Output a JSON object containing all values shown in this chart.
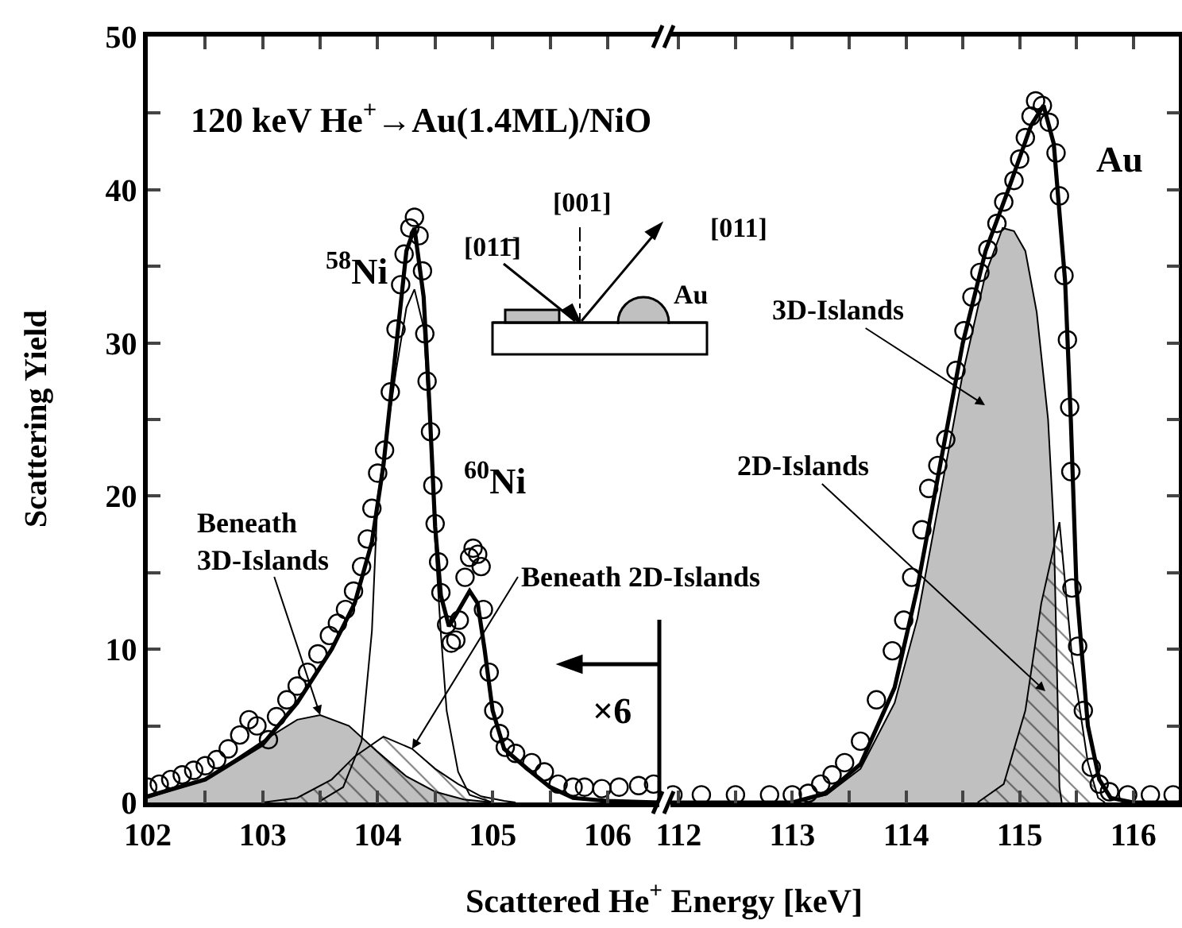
{
  "chart_data": [
    {
      "type": "line",
      "xlabel": "Scattered He$^{+}$ Energy [keV]",
      "ylabel": "Scattering Yield",
      "xlim": [
        102,
        106.45
      ],
      "ylim": [
        0,
        50
      ],
      "xticks": [
        102,
        {
          "value": 102.5,
          "label": null
        },
        103,
        {
          "value": 103.5,
          "label": null
        },
        104,
        {
          "value": 104.5,
          "label": null
        },
        105,
        {
          "value": 105.5,
          "label": null
        },
        106
      ],
      "yticks": [
        0,
        {
          "value": 5,
          "label": null
        },
        10,
        {
          "value": 15,
          "label": null
        },
        20,
        {
          "value": 25,
          "label": null
        },
        30,
        {
          "value": 35,
          "label": null
        },
        40,
        {
          "value": 45,
          "label": null
        },
        50
      ],
      "annotations": [
        "120 keV He$^{+}$→Au(1.4ML)/NiO",
        "$^{58}$Ni",
        "$^{60}$Ni",
        {
          "text": "Beneath\n3D-Islands",
          "x": 103.5,
          "y": 5.7
        },
        {
          "text": "Beneath 2D-Islands",
          "x": 104.3,
          "y": 3.5
        },
        "×6",
        "[001]",
        "[011̄]",
        "[011]",
        "Au"
      ],
      "series": [
        {
          "type": "area",
          "color": "#c0c0c0",
          "x": [
            102,
            102.5,
            103,
            103.3,
            103.5,
            103.75,
            104,
            104.25,
            104.5,
            104.75,
            105
          ],
          "values": [
            0.3,
            1.5,
            4.0,
            5.4,
            5.7,
            5.0,
            3.3,
            1.7,
            0.7,
            0.2,
            0
          ]
        },
        {
          "type": "area",
          "color": "#000000",
          "x": [
            103,
            103.3,
            103.6,
            103.8,
            104.05,
            104.3,
            104.5,
            104.7,
            104.9,
            105.1,
            105.2
          ],
          "values": [
            0,
            0.3,
            1.5,
            3.0,
            4.3,
            3.5,
            2.2,
            1.2,
            0.4,
            0.1,
            0
          ]
        },
        {
          "color": "#000000",
          "x": [
            103.5,
            103.7,
            103.86,
            103.95,
            104.0,
            104.16,
            104.25,
            104.32,
            104.4,
            104.45,
            104.5,
            104.55,
            104.6,
            104.7,
            104.8,
            105
          ],
          "values": [
            0.1,
            1.0,
            4.0,
            11.2,
            19.9,
            28.2,
            32.3,
            33.5,
            31,
            25,
            17,
            11,
            6,
            2,
            0.5,
            0
          ]
        },
        {
          "type": "scatter",
          "marker": "circle",
          "color": "#000000",
          "x": [
            102.0,
            102.1,
            102.2,
            102.3,
            102.4,
            102.5,
            102.6,
            102.7,
            102.8,
            102.88,
            102.95,
            103.05,
            103.12,
            103.21,
            103.3,
            103.39,
            103.48,
            103.58,
            103.65,
            103.72,
            103.79,
            103.86,
            103.91,
            103.95,
            104.0,
            104.06,
            104.11,
            104.16,
            104.2,
            104.23,
            104.28,
            104.32,
            104.36,
            104.39,
            104.41,
            104.43,
            104.46,
            104.48,
            104.5,
            104.53,
            104.55,
            104.6,
            104.64,
            104.68,
            104.71,
            104.76,
            104.8,
            104.83,
            104.87,
            104.9,
            104.92,
            104.97,
            105.01,
            105.06,
            105.11,
            105.2,
            105.34,
            105.45,
            105.57,
            105.7,
            105.8,
            105.95,
            106.1,
            106.27,
            106.4
          ],
          "values": [
            1.0,
            1.2,
            1.5,
            1.8,
            2.1,
            2.4,
            2.8,
            3.5,
            4.4,
            5.4,
            5.0,
            4.1,
            5.6,
            6.7,
            7.6,
            8.5,
            9.7,
            10.9,
            11.7,
            12.6,
            13.8,
            15.4,
            17.2,
            19.2,
            21.5,
            23.0,
            26.8,
            30.9,
            33.8,
            35.8,
            37.5,
            38.2,
            37.0,
            34.7,
            30.6,
            27.5,
            24.2,
            20.7,
            18.2,
            15.7,
            13.7,
            11.6,
            10.4,
            10.6,
            11.9,
            14.7,
            16.0,
            16.6,
            16.2,
            15.4,
            12.6,
            8.5,
            6.0,
            4.5,
            3.6,
            3.2,
            2.6,
            2.0,
            1.2,
            1.0,
            1.0,
            0.9,
            1.0,
            1.1,
            1.2
          ]
        },
        {
          "color": "#000000",
          "x": [
            102,
            102.5,
            103,
            103.3,
            103.6,
            103.8,
            103.95,
            104.05,
            104.15,
            104.25,
            104.32,
            104.4,
            104.45,
            104.5,
            104.55,
            104.62,
            104.7,
            104.8,
            104.87,
            104.93,
            105.0,
            105.1,
            105.3,
            105.5,
            105.7,
            106,
            106.45
          ],
          "values": [
            0.4,
            1.5,
            3.8,
            6.5,
            10,
            13,
            17,
            22,
            29,
            36,
            37.5,
            33,
            26,
            18,
            13.5,
            11.5,
            12.5,
            13.8,
            13,
            10,
            6,
            3.5,
            2.2,
            1.0,
            0.3,
            0.1,
            0
          ]
        }
      ]
    },
    {
      "type": "line",
      "tick_labels": "x",
      "xlim": [
        111.9,
        116.4
      ],
      "ylim": [
        0,
        50
      ],
      "xticks": [
        112,
        {
          "value": 112.5,
          "label": null
        },
        113,
        {
          "value": 113.5,
          "label": null
        },
        114,
        {
          "value": 114.5,
          "label": null
        },
        115,
        {
          "value": 115.5,
          "label": null
        },
        116
      ],
      "yticks": [
        0,
        {
          "value": 5,
          "label": null
        },
        10,
        {
          "value": 15,
          "label": null
        },
        20,
        {
          "value": 25,
          "label": null
        },
        30,
        {
          "value": 35,
          "label": null
        },
        40,
        {
          "value": 45,
          "label": null
        },
        50
      ],
      "annotations": [
        "Au",
        "3D-Islands",
        "2D-Islands"
      ],
      "series": [
        {
          "type": "area",
          "color": "#c0c0c0",
          "x": [
            113.0,
            113.3,
            113.6,
            113.9,
            114.1,
            114.3,
            114.5,
            114.7,
            114.85,
            114.95,
            115.05,
            115.15,
            115.25,
            115.3,
            115.33,
            115.35,
            115.37
          ],
          "values": [
            0,
            0.5,
            2.2,
            6.5,
            12,
            20,
            28,
            34.5,
            37.5,
            37.3,
            36,
            32,
            25,
            18,
            8,
            1,
            0
          ]
        },
        {
          "type": "area",
          "color": "#000000",
          "x": [
            114.63,
            114.86,
            115.05,
            115.19,
            115.35,
            115.46,
            115.6,
            115.69,
            115.75
          ],
          "values": [
            0,
            1.2,
            6.0,
            13,
            18.3,
            9.5,
            2.6,
            0.3,
            0
          ]
        },
        {
          "type": "scatter",
          "marker": "circle",
          "color": "#000000",
          "x": [
            111.95,
            112.2,
            112.5,
            112.8,
            113.0,
            113.14,
            113.25,
            113.35,
            113.46,
            113.6,
            113.74,
            113.88,
            113.98,
            114.05,
            114.14,
            114.2,
            114.28,
            114.35,
            114.44,
            114.51,
            114.58,
            114.65,
            114.72,
            114.8,
            114.86,
            114.95,
            115.0,
            115.05,
            115.1,
            115.14,
            115.2,
            115.26,
            115.32,
            115.35,
            115.39,
            115.42,
            115.44,
            115.45,
            115.46,
            115.51,
            115.56,
            115.63,
            115.7,
            115.79,
            115.95,
            116.15,
            116.35
          ],
          "values": [
            0.5,
            0.5,
            0.5,
            0.5,
            0.5,
            0.6,
            1.2,
            1.8,
            2.6,
            4.0,
            6.7,
            9.9,
            11.9,
            14.7,
            17.8,
            20.5,
            22.0,
            23.7,
            28.2,
            30.8,
            33.0,
            34.6,
            36.1,
            37.8,
            39.2,
            40.6,
            42.0,
            43.4,
            44.8,
            45.8,
            45.5,
            44.4,
            42.4,
            39.6,
            34.4,
            30.2,
            25.8,
            21.6,
            14.0,
            10.2,
            6.0,
            2.3,
            1.2,
            0.7,
            0.5,
            0.5,
            0.5
          ]
        },
        {
          "color": "#000000",
          "x": [
            111.9,
            113.0,
            113.3,
            113.6,
            113.9,
            114.1,
            114.3,
            114.5,
            114.7,
            114.9,
            115.1,
            115.21,
            115.3,
            115.4,
            115.45,
            115.5,
            115.6,
            115.7,
            115.8,
            116,
            116.4
          ],
          "values": [
            0,
            0,
            0.6,
            2.5,
            7.5,
            14,
            22,
            30,
            36,
            40,
            44.2,
            45.5,
            43,
            34,
            25,
            14,
            5,
            1.5,
            0.3,
            0,
            0
          ]
        }
      ]
    }
  ]
}
